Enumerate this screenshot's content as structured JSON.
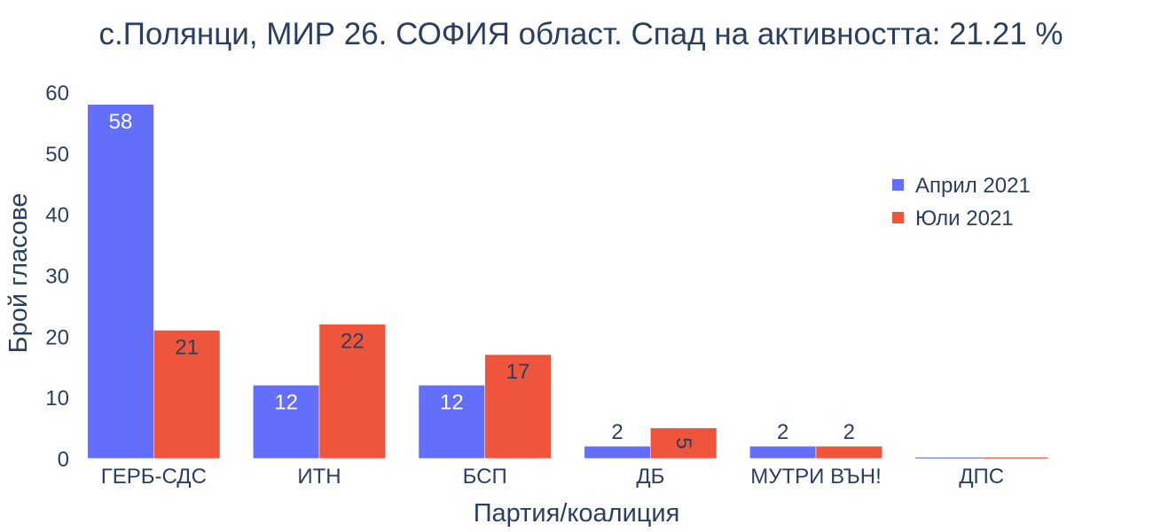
{
  "chart_data": {
    "type": "bar",
    "title": "с.Полянци, МИР 26. СОФИЯ област. Спад на активността: 21.21 %",
    "xlabel": "Партия/коалиция",
    "ylabel": "Брой гласове",
    "categories": [
      "ГЕРБ-СДС",
      "ИТН",
      "БСП",
      "ДБ",
      "МУТРИ ВЪН!",
      "ДПС"
    ],
    "series": [
      {
        "name": "Април 2021",
        "color": "#636efa",
        "label_color": "#ffffff",
        "values": [
          58,
          12,
          12,
          2,
          2,
          0
        ],
        "labels": [
          "58",
          "12",
          "12",
          "2",
          "2",
          ""
        ]
      },
      {
        "name": "Юли 2021",
        "color": "#ef553b",
        "label_color": "#2a3f5f",
        "values": [
          21,
          22,
          17,
          5,
          2,
          0
        ],
        "labels": [
          "21",
          "22",
          "17",
          "5",
          "2",
          ""
        ]
      }
    ],
    "ylim": [
      0,
      60
    ],
    "yticks": [
      0,
      10,
      20,
      30,
      40,
      50,
      60
    ],
    "grid": false,
    "legend_position": "top-right",
    "barmode": "group"
  }
}
